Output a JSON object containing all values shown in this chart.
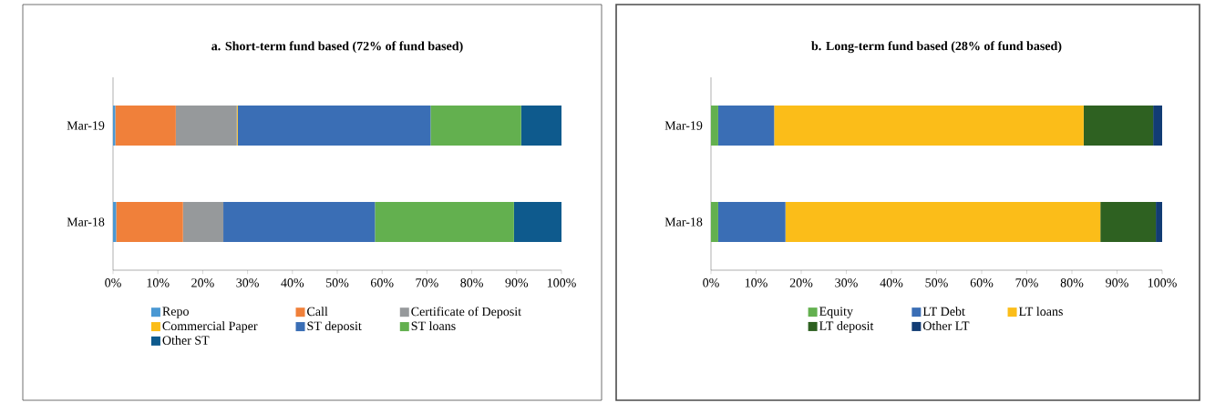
{
  "chart_data": [
    {
      "type": "bar",
      "orientation": "horizontal",
      "stacked": true,
      "title": "a. Short-term fund based (72% of fund based)",
      "categories": [
        "Mar-19",
        "Mar-18"
      ],
      "series": [
        {
          "name": "Repo",
          "color": "#4a98d3",
          "values": [
            0.5,
            0.7
          ]
        },
        {
          "name": "Call",
          "color": "#f0803a",
          "values": [
            13.5,
            14.9
          ]
        },
        {
          "name": "Certificate of Deposit",
          "color": "#96999b",
          "values": [
            13.6,
            9.0
          ]
        },
        {
          "name": "Commercial Paper",
          "color": "#fbbd19",
          "values": [
            0.2,
            0
          ]
        },
        {
          "name": "ST deposit",
          "color": "#3a6eb5",
          "values": [
            43.0,
            33.8
          ]
        },
        {
          "name": "ST loans",
          "color": "#63b04f",
          "values": [
            20.2,
            31.0
          ]
        },
        {
          "name": "Other ST",
          "color": "#0e5a8d",
          "values": [
            9.0,
            10.6
          ]
        }
      ],
      "xlim": [
        0,
        100
      ],
      "xticks": [
        {
          "value": 0,
          "label": "0%"
        },
        {
          "value": 10,
          "label": "10%"
        },
        {
          "value": 20,
          "label": "20%"
        },
        {
          "value": 30,
          "label": "30%"
        },
        {
          "value": 40,
          "label": "40%"
        },
        {
          "value": 50,
          "label": "50%"
        },
        {
          "value": 60,
          "label": "60%"
        },
        {
          "value": 70,
          "label": "70%"
        },
        {
          "value": 80,
          "label": "80%"
        },
        {
          "value": 90,
          "label": "90%"
        },
        {
          "value": 100,
          "label": "100%"
        }
      ],
      "legend": "bottom"
    },
    {
      "type": "bar",
      "orientation": "horizontal",
      "stacked": true,
      "title": "b. Long-term fund based (28% of fund based)",
      "categories": [
        "Mar-19",
        "Mar-18"
      ],
      "series": [
        {
          "name": "Equity",
          "color": "#63b04f",
          "values": [
            1.6,
            1.6
          ]
        },
        {
          "name": "LT Debt",
          "color": "#3a6eb5",
          "values": [
            12.4,
            14.9
          ]
        },
        {
          "name": "LT loans",
          "color": "#fbbd19",
          "values": [
            68.6,
            69.8
          ]
        },
        {
          "name": "LT deposit",
          "color": "#2e6121",
          "values": [
            15.4,
            12.3
          ]
        },
        {
          "name": "Other LT",
          "color": "#123c74",
          "values": [
            2.0,
            1.4
          ]
        }
      ],
      "xlim": [
        0,
        100
      ],
      "xticks": [
        {
          "value": 0,
          "label": "0%"
        },
        {
          "value": 10,
          "label": "10%"
        },
        {
          "value": 20,
          "label": "20%"
        },
        {
          "value": 30,
          "label": "30%"
        },
        {
          "value": 40,
          "label": "40%"
        },
        {
          "value": 50,
          "label": "50%"
        },
        {
          "value": 60,
          "label": "60%"
        },
        {
          "value": 70,
          "label": "70%"
        },
        {
          "value": 80,
          "label": "80%"
        },
        {
          "value": 90,
          "label": "90%"
        },
        {
          "value": 100,
          "label": "100%"
        }
      ],
      "legend": "bottom"
    }
  ]
}
